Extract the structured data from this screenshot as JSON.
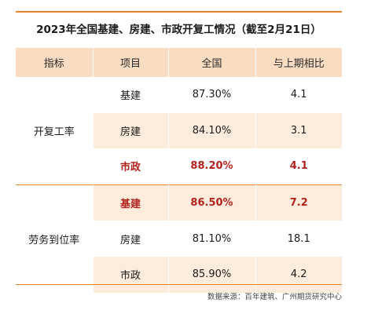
{
  "title": "2023年全国基建、房建、市政开复工情况（截至2月21日）",
  "table": {
    "headers": [
      "指标",
      "项目",
      "全国",
      "与上期相比"
    ],
    "groups": [
      {
        "label": "开复工率",
        "rows": [
          {
            "item": "基建",
            "national": "87.30%",
            "change": "4.1",
            "highlight": false
          },
          {
            "item": "房建",
            "national": "84.10%",
            "change": "3.1",
            "highlight": false
          },
          {
            "item": "市政",
            "national": "88.20%",
            "change": "4.1",
            "highlight": true
          }
        ]
      },
      {
        "label": "劳务到位率",
        "rows": [
          {
            "item": "基建",
            "national": "86.50%",
            "change": "7.2",
            "highlight": true
          },
          {
            "item": "房建",
            "national": "81.10%",
            "change": "18.1",
            "highlight": false
          },
          {
            "item": "市政",
            "national": "85.90%",
            "change": "4.2",
            "highlight": false
          }
        ]
      }
    ]
  },
  "source": "数据来源：百年建筑、广州期货研究中心",
  "colors": {
    "accent": "#e8832a",
    "header_bg": "#f9dcc1",
    "stripe_bg": "#fdecdc",
    "highlight_text": "#b3231e"
  }
}
